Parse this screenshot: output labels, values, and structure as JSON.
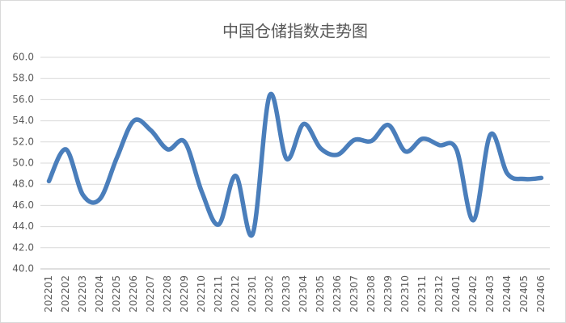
{
  "chart_data": {
    "type": "line",
    "title": "中国仓储指数走势图",
    "categories": [
      "202201",
      "202202",
      "202203",
      "202204",
      "202205",
      "202206",
      "202207",
      "202208",
      "202209",
      "202210",
      "202211",
      "202212",
      "202301",
      "202302",
      "202303",
      "202304",
      "202305",
      "202306",
      "202307",
      "202308",
      "202309",
      "202310",
      "202311",
      "202312",
      "202401",
      "202402",
      "202403",
      "202404",
      "202405",
      "202406"
    ],
    "values": [
      48.3,
      51.3,
      47.0,
      46.6,
      50.5,
      54.0,
      53.1,
      51.3,
      52.0,
      47.3,
      44.2,
      48.8,
      43.3,
      56.4,
      50.4,
      53.7,
      51.4,
      50.8,
      52.2,
      52.1,
      53.6,
      51.1,
      52.3,
      51.7,
      51.3,
      44.6,
      52.7,
      49.0,
      48.5,
      48.6
    ],
    "color": "#4a7ebb",
    "ylim": [
      40,
      60
    ],
    "yticks": [
      {
        "value": 40,
        "label": "40.0"
      },
      {
        "value": 42,
        "label": "42.0"
      },
      {
        "value": 44,
        "label": "44.0"
      },
      {
        "value": 46,
        "label": "46.0"
      },
      {
        "value": 48,
        "label": "48.0"
      },
      {
        "value": 50,
        "label": "50.0"
      },
      {
        "value": 52,
        "label": "52.0"
      },
      {
        "value": 54,
        "label": "54.0"
      },
      {
        "value": 56,
        "label": "56.0"
      },
      {
        "value": 58,
        "label": "58.0"
      },
      {
        "value": 60,
        "label": "60.0"
      }
    ],
    "grid": true
  }
}
